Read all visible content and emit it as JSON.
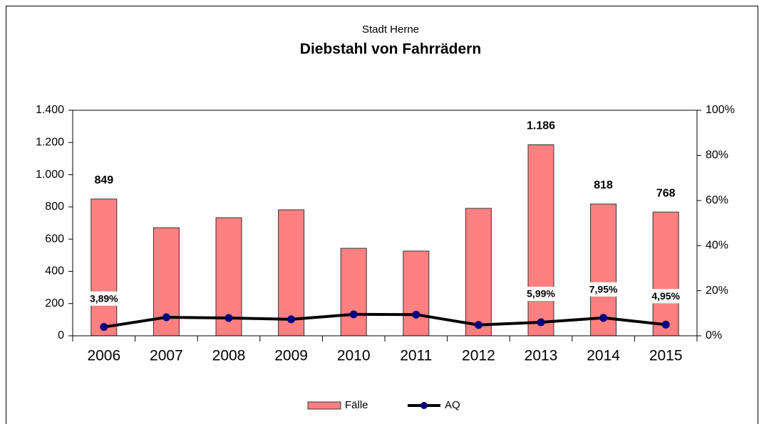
{
  "chart_data": {
    "type": "bar",
    "subtitle": "Stadt Herne",
    "title": "Diebstahl von Fahrrädern",
    "categories": [
      "2006",
      "2007",
      "2008",
      "2009",
      "2010",
      "2011",
      "2012",
      "2013",
      "2014",
      "2015"
    ],
    "series": [
      {
        "name": "Fälle",
        "type": "bar",
        "color": "#ff8080",
        "values": [
          849,
          671,
          733,
          782,
          543,
          526,
          791,
          1186,
          818,
          768
        ],
        "value_labels": [
          "849",
          null,
          null,
          null,
          null,
          null,
          null,
          "1.186",
          "818",
          "768"
        ]
      },
      {
        "name": "AQ",
        "type": "line",
        "axis": "y2",
        "color": "#000000",
        "marker_color": "#000080",
        "values": [
          3.89,
          8.2,
          7.9,
          7.3,
          9.5,
          9.4,
          4.8,
          5.99,
          7.95,
          4.95
        ],
        "value_labels": [
          "3,89%",
          null,
          null,
          null,
          null,
          null,
          null,
          "5,99%",
          "7,95%",
          "4,95%"
        ]
      }
    ],
    "ylim": [
      0,
      1400
    ],
    "yticks": [
      0,
      200,
      400,
      600,
      800,
      {
        "value": 1000,
        "label": "1.000"
      },
      {
        "value": 1200,
        "label": "1.200"
      },
      {
        "value": 1400,
        "label": "1.400"
      }
    ],
    "y2lim": [
      0,
      100
    ],
    "y2ticks": [
      {
        "value": 0,
        "label": "0%"
      },
      {
        "value": 20,
        "label": "20%"
      },
      {
        "value": 40,
        "label": "40%"
      },
      {
        "value": 60,
        "label": "60%"
      },
      {
        "value": 80,
        "label": "80%"
      },
      {
        "value": 100,
        "label": "100%"
      }
    ],
    "legend": "bottom"
  }
}
